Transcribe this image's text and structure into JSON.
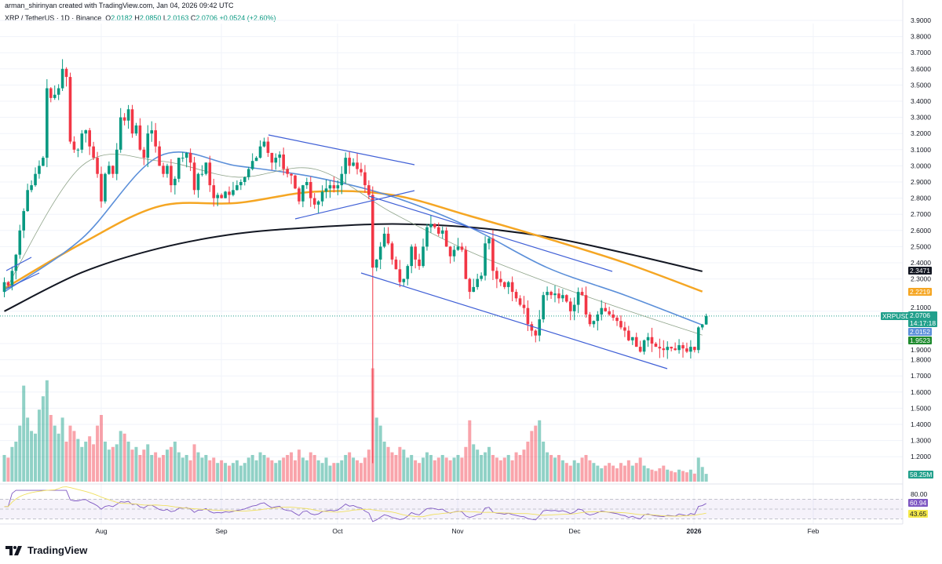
{
  "header": {
    "credit": "arman_shirinyan created with TradingView.com, Jan 04, 2026 09:42 UTC",
    "symbol": "XRP / TetherUS · 1D · Binance",
    "open_label": "O",
    "open": "2.0182",
    "high_label": "H",
    "high": "2.0850",
    "low_label": "L",
    "low": "2.0163",
    "close_label": "C",
    "close": "2.0706",
    "change": "+0.0524 (+2.60%)"
  },
  "colors": {
    "up": "#089981",
    "down": "#f23645",
    "ma20": "#8fa48a",
    "ema50": "#5b8fd9",
    "ma100": "#f5a623",
    "ma200": "#131722",
    "rsi": "#7e57c2",
    "rsi_ma": "#f0e060",
    "trendline": "#3f5fd6"
  },
  "chart_data": {
    "type": "candlestick",
    "symbol": "XRPUSDT",
    "interval": "1D",
    "first_date": "Jul 7, 2025",
    "last_date": "Jan 4, 2026",
    "y_scale": "linear",
    "ylim": [
      1.1,
      3.9
    ],
    "y_ticks": [
      "3.9000",
      "3.8000",
      "3.7000",
      "3.6000",
      "3.5000",
      "3.4000",
      "3.3000",
      "3.2000",
      "3.1000",
      "3.0000",
      "2.9000",
      "2.8000",
      "2.7000",
      "2.6000",
      "2.5000",
      "2.4000",
      "2.3000",
      "2.1000",
      "1.9000",
      "1.8000",
      "1.7000",
      "1.6000",
      "1.5000",
      "1.4000",
      "1.3000",
      "1.2000"
    ],
    "x_ticks": [
      "Aug",
      "Sep",
      "Oct",
      "Nov",
      "Dec",
      "2026",
      "Feb"
    ],
    "grid": true,
    "closes": [
      2.28,
      2.26,
      2.35,
      2.45,
      2.6,
      2.72,
      2.85,
      2.88,
      2.95,
      3.0,
      3.05,
      3.48,
      3.42,
      3.44,
      3.48,
      3.6,
      3.55,
      3.15,
      3.1,
      3.1,
      3.2,
      3.22,
      3.12,
      3.05,
      2.95,
      2.78,
      2.95,
      3.0,
      2.95,
      3.1,
      3.3,
      3.28,
      3.35,
      3.2,
      3.25,
      3.1,
      3.05,
      3.2,
      3.22,
      3.12,
      3.0,
      2.95,
      3.0,
      2.88,
      2.92,
      3.05,
      3.05,
      3.08,
      3.02,
      2.85,
      2.95,
      2.95,
      3.02,
      2.88,
      2.8,
      2.82,
      2.8,
      2.84,
      2.82,
      2.85,
      2.88,
      2.9,
      2.93,
      2.98,
      3.03,
      3.05,
      3.12,
      3.15,
      3.08,
      3.02,
      3.05,
      3.07,
      2.98,
      2.95,
      2.94,
      2.86,
      2.78,
      2.88,
      2.9,
      2.8,
      2.76,
      2.78,
      2.84,
      2.86,
      2.88,
      2.86,
      2.88,
      2.95,
      3.05,
      3.0,
      3.02,
      2.98,
      2.96,
      2.88,
      2.82,
      2.37,
      2.42,
      2.5,
      2.58,
      2.52,
      2.42,
      2.36,
      2.28,
      2.3,
      2.38,
      2.5,
      2.42,
      2.38,
      2.5,
      2.62,
      2.64,
      2.62,
      2.58,
      2.6,
      2.5,
      2.44,
      2.48,
      2.5,
      2.48,
      2.3,
      2.22,
      2.25,
      2.3,
      2.32,
      2.52,
      2.55,
      2.35,
      2.3,
      2.28,
      2.25,
      2.28,
      2.22,
      2.18,
      2.14,
      2.12,
      2.02,
      1.98,
      1.95,
      2.05,
      2.2,
      2.22,
      2.2,
      2.21,
      2.18,
      2.2,
      2.16,
      2.1,
      2.14,
      2.22,
      2.2,
      2.08,
      2.02,
      2.04,
      2.08,
      2.12,
      2.1,
      2.08,
      2.06,
      2.04,
      2.0,
      1.98,
      1.92,
      1.94,
      1.88,
      1.85,
      1.92,
      1.94,
      1.9,
      1.88,
      1.87,
      1.86,
      1.88,
      1.87,
      1.86,
      1.89,
      1.87,
      1.85,
      1.88,
      1.86,
      2.0,
      2.0182,
      2.0706
    ],
    "notable_wicks": [
      {
        "date": "Oct 10, 2025",
        "low": 1.16
      },
      {
        "date": "Jul 18, 2025",
        "high": 3.66
      }
    ],
    "volume_millions": [
      200,
      180,
      260,
      300,
      420,
      720,
      480,
      380,
      360,
      540,
      640,
      760,
      500,
      420,
      360,
      480,
      300,
      420,
      380,
      320,
      260,
      300,
      340,
      280,
      420,
      500,
      300,
      240,
      260,
      280,
      380,
      360,
      300,
      240,
      260,
      200,
      240,
      280,
      200,
      220,
      180,
      200,
      240,
      260,
      300,
      220,
      180,
      200,
      160,
      280,
      220,
      180,
      200,
      160,
      180,
      140,
      160,
      140,
      120,
      140,
      160,
      120,
      140,
      180,
      200,
      160,
      220,
      200,
      180,
      160,
      140,
      160,
      180,
      200,
      220,
      160,
      240,
      180,
      160,
      220,
      200,
      160,
      140,
      180,
      120,
      140,
      140,
      160,
      200,
      220,
      180,
      160,
      140,
      180,
      240,
      850,
      480,
      420,
      300,
      260,
      220,
      200,
      260,
      240,
      180,
      200,
      160,
      140,
      180,
      220,
      200,
      160,
      180,
      200,
      180,
      160,
      180,
      200,
      180,
      260,
      460,
      280,
      240,
      200,
      220,
      260,
      200,
      180,
      160,
      180,
      200,
      160,
      220,
      200,
      240,
      300,
      380,
      420,
      460,
      300,
      220,
      200,
      180,
      200,
      160,
      140,
      120,
      160,
      140,
      180,
      200,
      160,
      140,
      120,
      100,
      120,
      140,
      120,
      100,
      140,
      120,
      160,
      120,
      140,
      180,
      120,
      100,
      90,
      80,
      100,
      120,
      90,
      80,
      70,
      90,
      80,
      70,
      90,
      60,
      180,
      110,
      58.25
    ],
    "moving_averages": {
      "sample_every_days": 20,
      "ma20": [
        2.22,
        3.0,
        3.03,
        2.93,
        2.98,
        2.71,
        2.47,
        2.28,
        2.11,
        1.9523
      ],
      "ema50": [
        2.22,
        2.55,
        3.06,
        3.0,
        2.93,
        2.81,
        2.62,
        2.37,
        2.2,
        2.0152
      ],
      "ma100": [
        2.24,
        2.52,
        2.75,
        2.77,
        2.84,
        2.82,
        2.69,
        2.55,
        2.4,
        2.2219
      ],
      "ma200": [
        2.1,
        2.34,
        2.49,
        2.58,
        2.62,
        2.64,
        2.62,
        2.56,
        2.46,
        2.3471
      ]
    },
    "rsi": {
      "levels": [
        70,
        50,
        30
      ],
      "axis_label": "80.00",
      "value": "60.94",
      "ma_value": "43.65"
    }
  },
  "price_labels": {
    "symbol_tag": "XRPUSDT",
    "last_price": "2.0706",
    "countdown": "14:17:18",
    "ema50": "2.0152",
    "ma20": "1.9523",
    "ma200": "2.3471",
    "ma100": "2.2219",
    "volume": "58.25M"
  },
  "footer": {
    "brand": "TradingView"
  }
}
